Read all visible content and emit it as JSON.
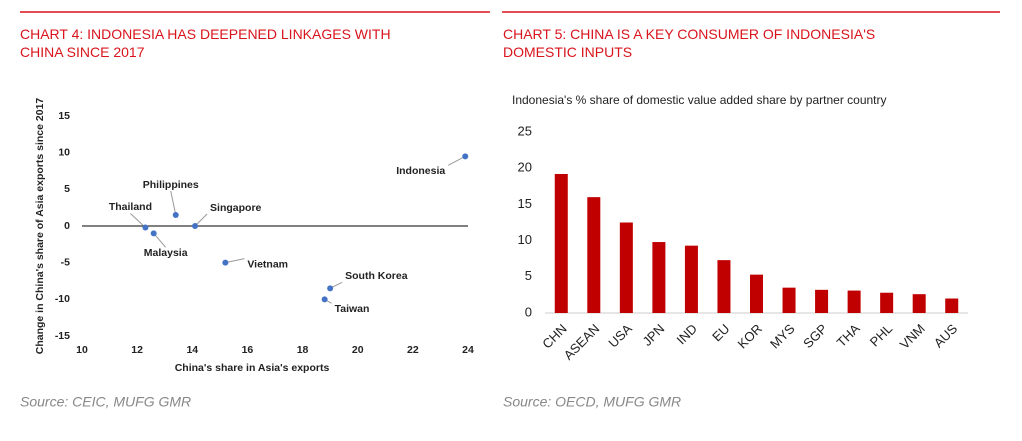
{
  "chart_data": [
    {
      "type": "scatter",
      "title": "CHART 4: INDONESIA HAS DEEPENED LINKAGES WITH CHINA SINCE 2017",
      "xlabel": "China's share in Asia's exports",
      "ylabel": "Change in China's share of Asia exports since 2017",
      "labels": [
        "Indonesia",
        "Philippines",
        "Singapore",
        "Thailand",
        "Malaysia",
        "Vietnam",
        "South Korea",
        "Taiwan"
      ],
      "x": [
        23.9,
        13.4,
        14.1,
        12.3,
        12.6,
        15.2,
        19.0,
        18.8
      ],
      "values": [
        9.5,
        1.5,
        0,
        -0.2,
        -1,
        -5,
        -8.5,
        -10
      ],
      "color": "#4472c4",
      "xlim": [
        10,
        24
      ],
      "xticks": [
        10,
        12,
        14,
        16,
        18,
        20,
        22,
        24
      ],
      "ylim": [
        -15,
        15
      ],
      "yticks": [
        -15,
        -10,
        -5,
        0,
        5,
        10,
        15
      ],
      "source": "Source: CEIC, MUFG GMR"
    },
    {
      "type": "bar",
      "title": "CHART 5: CHINA IS A KEY CONSUMER OF INDONESIA'S DOMESTIC INPUTS",
      "subtitle": "Indonesia's % share of domestic value added share by partner country",
      "categories": [
        "CHN",
        "ASEAN",
        "USA",
        "JPN",
        "IND",
        "EU",
        "KOR",
        "MYS",
        "SGP",
        "THA",
        "PHL",
        "VNM",
        "AUS"
      ],
      "values": [
        19.2,
        16,
        12.5,
        9.8,
        9.3,
        7.3,
        5.3,
        3.5,
        3.2,
        3.1,
        2.8,
        2.6,
        2
      ],
      "color": "#c00000",
      "ylim": [
        0,
        25
      ],
      "yticks": [
        0,
        5,
        10,
        15,
        20,
        25
      ],
      "source": "Source: OECD, MUFG GMR"
    }
  ]
}
